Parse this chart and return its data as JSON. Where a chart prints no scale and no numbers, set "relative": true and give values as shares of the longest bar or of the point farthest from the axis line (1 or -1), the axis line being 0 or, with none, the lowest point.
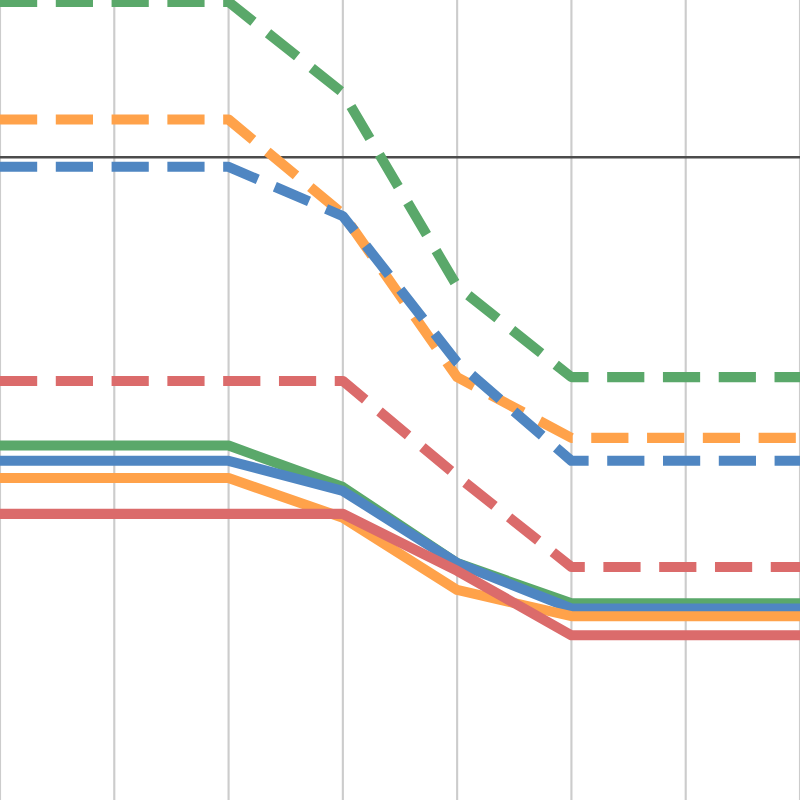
{
  "chart_data": {
    "type": "line",
    "relative": true,
    "grid": true,
    "categories": [
      null,
      null,
      null,
      null,
      null,
      null,
      null,
      null
    ],
    "series": [
      {
        "color": "#5aa86a",
        "line_style": "dashed",
        "values": [
          0.325,
          0.325,
          0.325,
          0.135,
          -0.27,
          -0.46,
          -0.46,
          -0.46
        ]
      },
      {
        "color": "#ffa24a",
        "line_style": "dashed",
        "values": [
          0.079,
          0.079,
          0.079,
          -0.119,
          -0.46,
          -0.587,
          -0.587,
          -0.587
        ]
      },
      {
        "color": "#4f86c2",
        "line_style": "dashed",
        "values": [
          -0.02,
          -0.02,
          -0.02,
          -0.123,
          -0.429,
          -0.635,
          -0.635,
          -0.635
        ]
      },
      {
        "color": "#db6b6b",
        "line_style": "dashed",
        "values": [
          -0.468,
          -0.468,
          -0.468,
          -0.468,
          -0.667,
          -0.857,
          -0.857,
          -0.857
        ]
      },
      {
        "color": "#5aa86a",
        "line_style": "solid",
        "values": [
          -0.603,
          -0.603,
          -0.603,
          -0.69,
          -0.849,
          -0.933,
          -0.933,
          -0.933
        ]
      },
      {
        "color": "#4f86c2",
        "line_style": "solid",
        "values": [
          -0.635,
          -0.635,
          -0.635,
          -0.698,
          -0.849,
          -0.944,
          -0.944,
          -0.944
        ]
      },
      {
        "color": "#ffa24a",
        "line_style": "solid",
        "values": [
          -0.671,
          -0.671,
          -0.671,
          -0.754,
          -0.905,
          -0.96,
          -0.96,
          -0.96
        ]
      },
      {
        "color": "#db6b6b",
        "line_style": "solid",
        "values": [
          -0.746,
          -0.746,
          -0.746,
          -0.746,
          -0.865,
          -1,
          -1,
          -1
        ]
      }
    ]
  }
}
